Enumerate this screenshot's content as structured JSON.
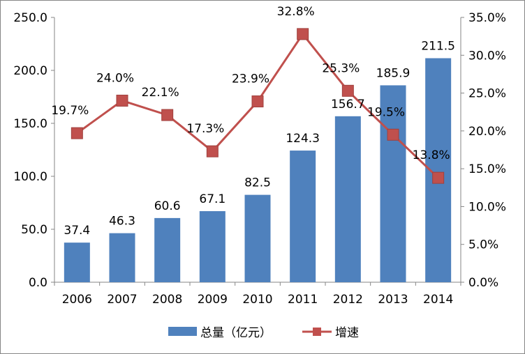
{
  "chart_data": {
    "type": "bar+line",
    "categories": [
      "2006",
      "2007",
      "2008",
      "2009",
      "2010",
      "2011",
      "2012",
      "2013",
      "2014"
    ],
    "series": [
      {
        "name": "总量（亿元）",
        "type": "bar",
        "axis": "left",
        "values": [
          37.4,
          46.3,
          60.6,
          67.1,
          82.5,
          124.3,
          156.7,
          185.9,
          211.5
        ],
        "labels": [
          "37.4",
          "46.3",
          "60.6",
          "67.1",
          "82.5",
          "124.3",
          "156.7",
          "185.9",
          "211.5"
        ],
        "color": "#4F81BD"
      },
      {
        "name": "增速",
        "type": "line",
        "axis": "right",
        "values": [
          19.7,
          24.0,
          22.1,
          17.3,
          23.9,
          32.8,
          25.3,
          19.5,
          13.8
        ],
        "labels": [
          "19.7%",
          "24.0%",
          "22.1%",
          "17.3%",
          "23.9%",
          "32.8%",
          "25.3%",
          "19.5%",
          "13.8%"
        ],
        "color": "#C0504D"
      }
    ],
    "y_left": {
      "min": 0,
      "max": 250,
      "ticks": [
        "0.0",
        "50.0",
        "100.0",
        "150.0",
        "200.0",
        "250.0"
      ]
    },
    "y_right": {
      "min": 0,
      "max": 35,
      "ticks": [
        "0.0%",
        "5.0%",
        "10.0%",
        "15.0%",
        "20.0%",
        "25.0%",
        "30.0%",
        "35.0%"
      ]
    },
    "grid": false,
    "legend": "bottom"
  },
  "legend": {
    "bar_label": "总量（亿元）",
    "line_label": "增速"
  }
}
